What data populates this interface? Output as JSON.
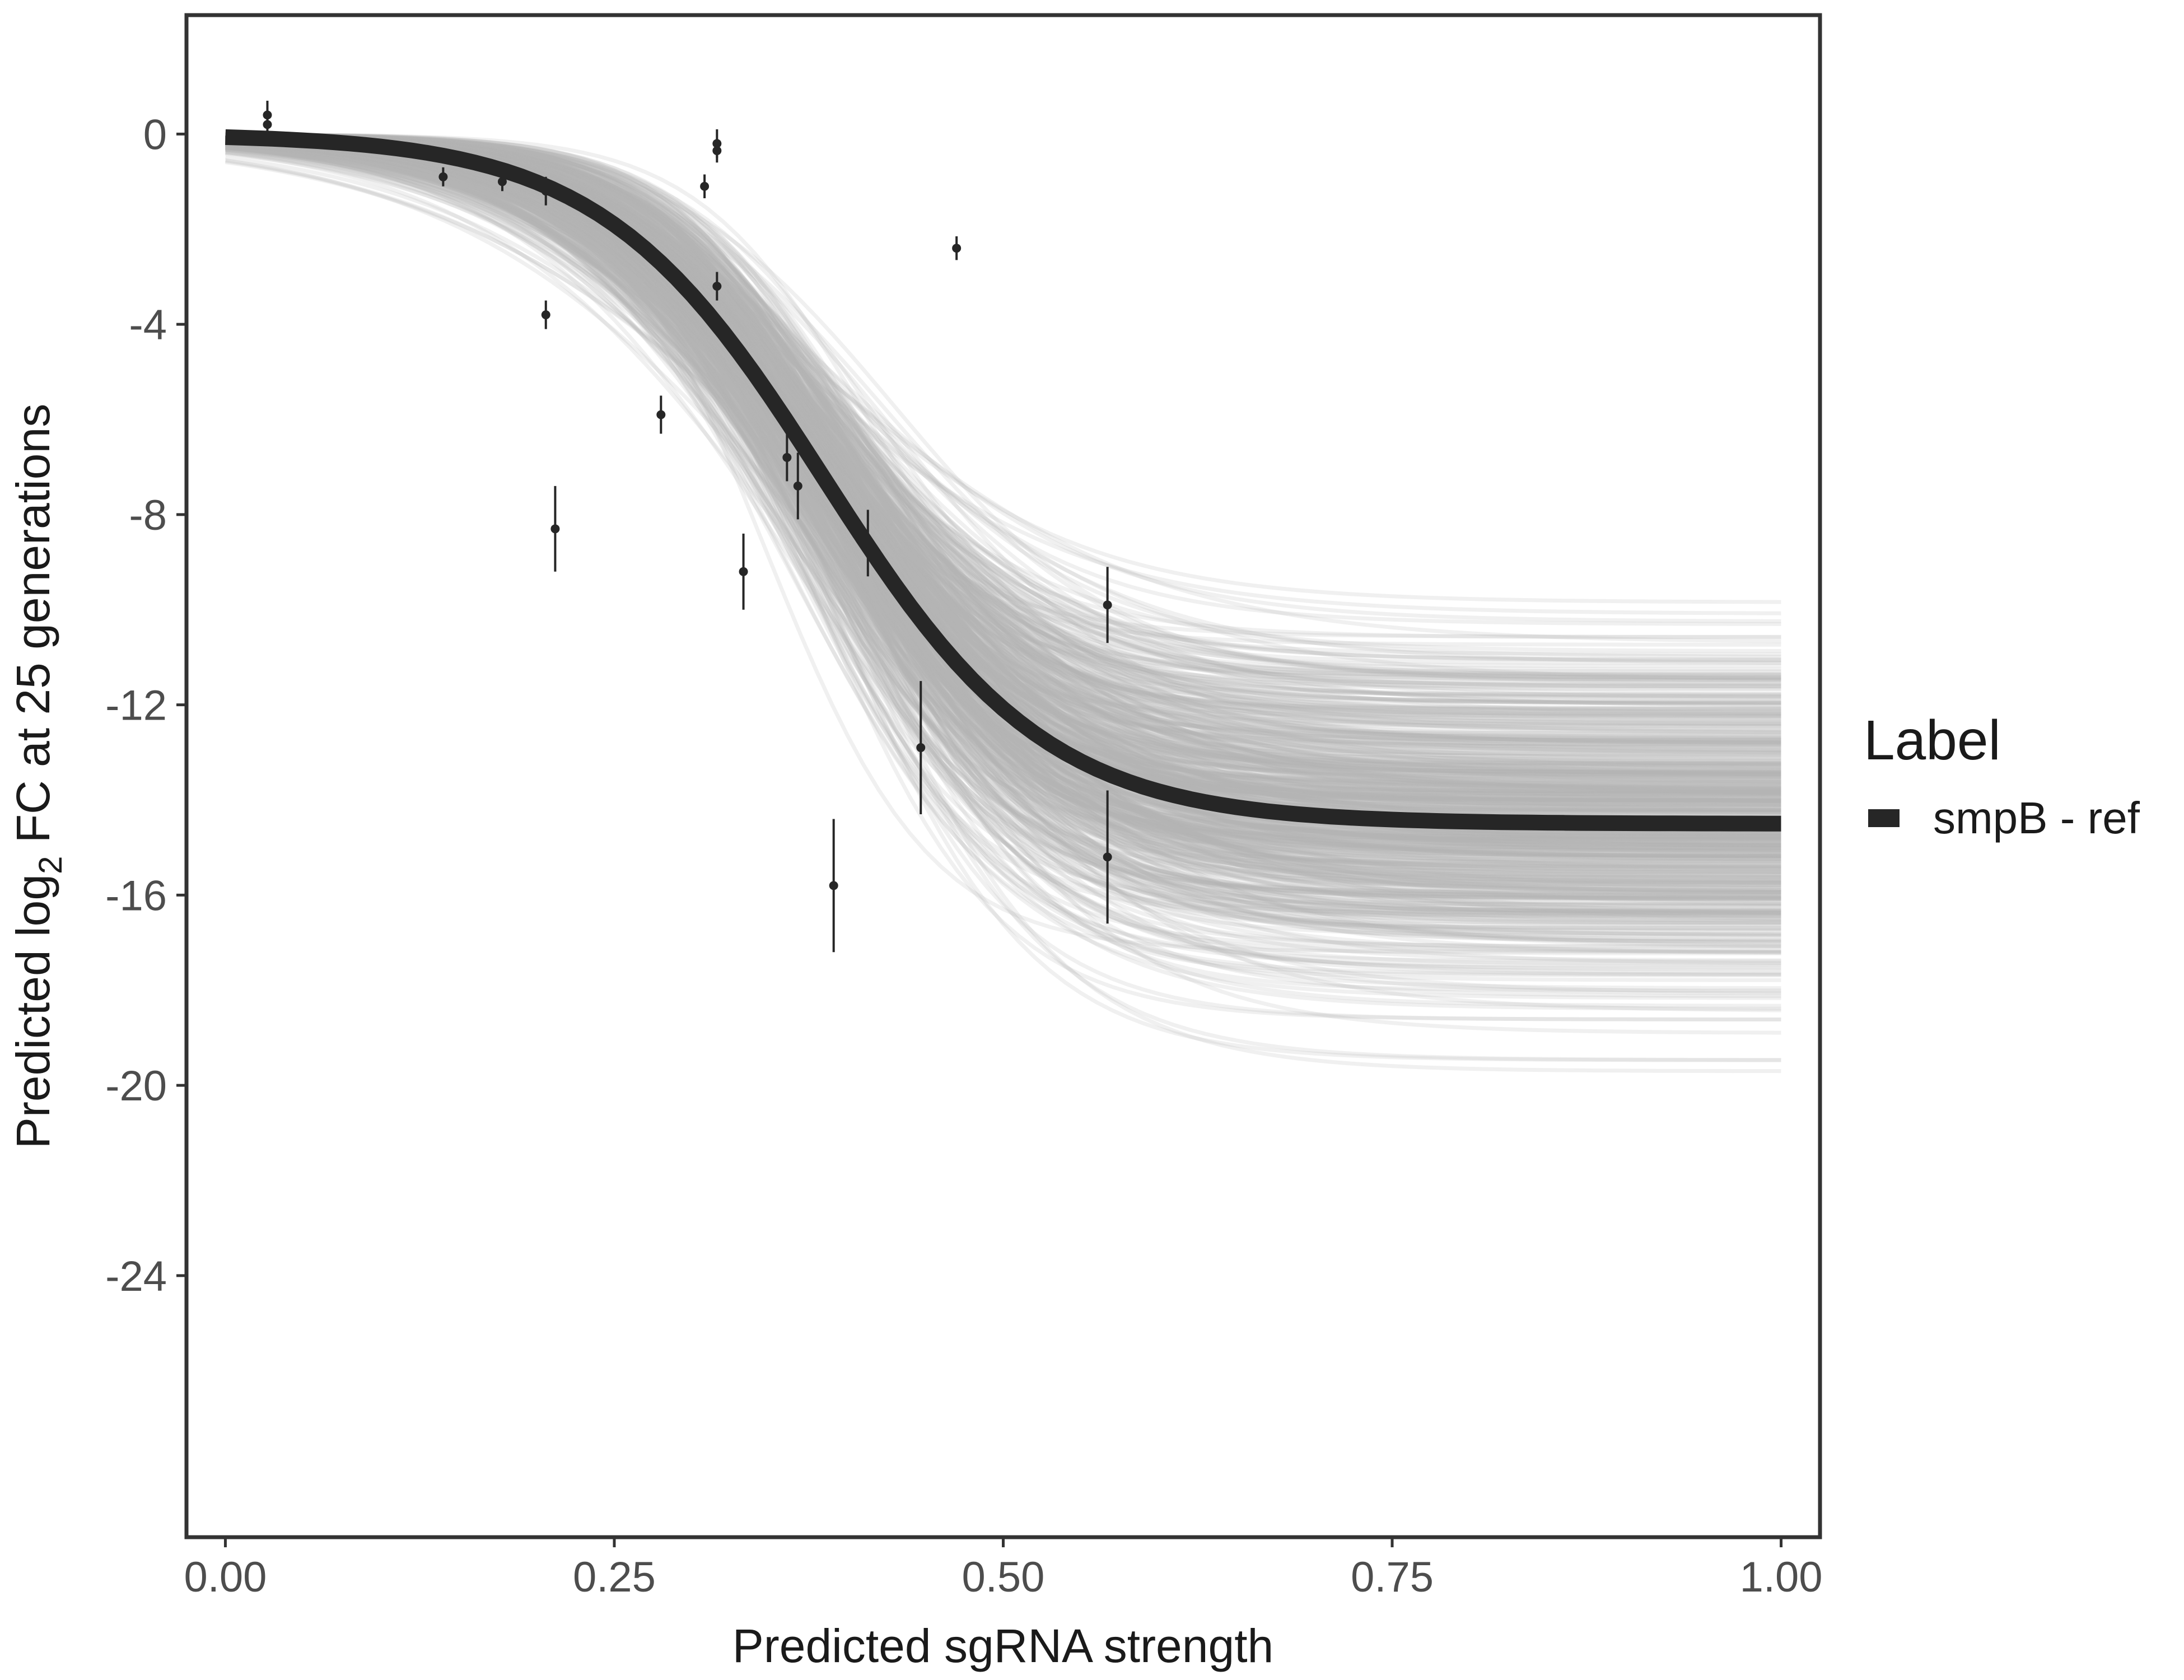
{
  "chart_data": {
    "type": "line",
    "title": "",
    "xlabel": "Predicted sgRNA strength",
    "ylabel_prefix": "Predicted  log",
    "ylabel_subscript": "2",
    "ylabel_suffix": " FC at 25 generations",
    "xlim": [
      -0.025,
      1.025
    ],
    "ylim": [
      -29.5,
      2.5
    ],
    "x_ticks": [
      0.0,
      0.25,
      0.5,
      0.75,
      1.0
    ],
    "x_tick_labels": [
      "0.00",
      "0.25",
      "0.50",
      "0.75",
      "1.00"
    ],
    "y_ticks": [
      0,
      -4,
      -8,
      -12,
      -16,
      -20,
      -24
    ],
    "y_tick_labels": [
      "0",
      "-4",
      "-8",
      "-12",
      "-16",
      "-20",
      "-24"
    ],
    "grid": false,
    "legend": {
      "title": "Label",
      "position": "right",
      "entries": [
        {
          "label": "smpB - ref",
          "color": "#262626"
        }
      ]
    },
    "fit_curve": {
      "name": "smpB - ref",
      "color": "#262626",
      "model": "logistic",
      "lower_asymptote": -14.5,
      "upper_asymptote": 0.0,
      "midpoint": 0.385,
      "slope": 14
    },
    "posterior_draws": {
      "count": 600,
      "color": "#b3b3b3",
      "midpoint_range": [
        0.3,
        0.5
      ],
      "slope_range": [
        6,
        24
      ],
      "lower_asymptote_range": [
        -25,
        -7.2
      ]
    },
    "points": [
      {
        "x": 0.027,
        "y": 0.4,
        "err": 0.3
      },
      {
        "x": 0.027,
        "y": 0.2,
        "err": 0.25
      },
      {
        "x": 0.14,
        "y": -0.9,
        "err": 0.2
      },
      {
        "x": 0.178,
        "y": -1.0,
        "err": 0.2
      },
      {
        "x": 0.206,
        "y": -1.2,
        "err": 0.3
      },
      {
        "x": 0.206,
        "y": -3.8,
        "err": 0.3
      },
      {
        "x": 0.212,
        "y": -8.3,
        "err": 0.9
      },
      {
        "x": 0.28,
        "y": -5.9,
        "err": 0.4
      },
      {
        "x": 0.308,
        "y": -1.1,
        "err": 0.25
      },
      {
        "x": 0.316,
        "y": -0.2,
        "err": 0.3
      },
      {
        "x": 0.316,
        "y": -0.35,
        "err": 0.25
      },
      {
        "x": 0.316,
        "y": -3.2,
        "err": 0.3
      },
      {
        "x": 0.333,
        "y": -9.2,
        "err": 0.8
      },
      {
        "x": 0.361,
        "y": -6.8,
        "err": 0.5
      },
      {
        "x": 0.368,
        "y": -7.4,
        "err": 0.7
      },
      {
        "x": 0.391,
        "y": -15.8,
        "err": 1.4
      },
      {
        "x": 0.413,
        "y": -8.6,
        "err": 0.7
      },
      {
        "x": 0.447,
        "y": -12.9,
        "err": 1.4
      },
      {
        "x": 0.47,
        "y": -2.4,
        "err": 0.25
      },
      {
        "x": 0.567,
        "y": -9.9,
        "err": 0.8
      },
      {
        "x": 0.567,
        "y": -15.2,
        "err": 1.4
      }
    ]
  }
}
